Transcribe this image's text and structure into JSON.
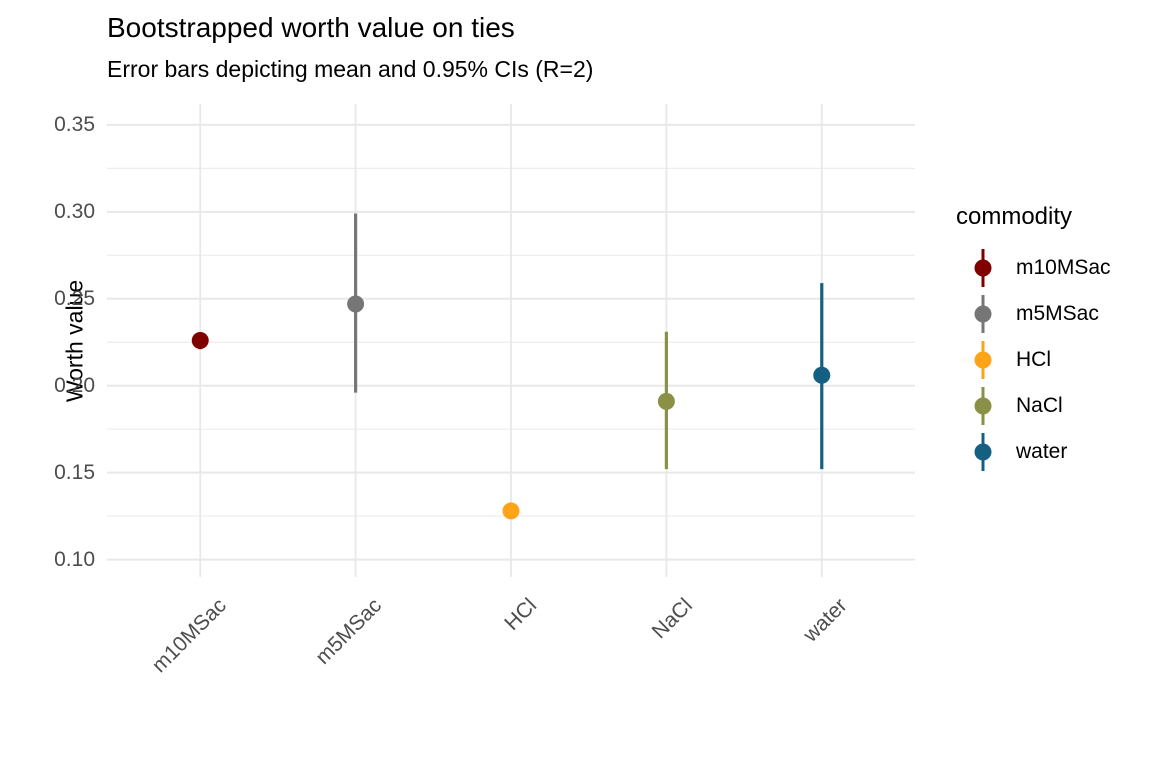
{
  "chart_data": {
    "type": "scatter",
    "subtype": "pointrange-errorbar",
    "title": "Bootstrapped worth value on ties",
    "subtitle": "Error bars depicting mean and 0.95% CIs (R=2)",
    "xlabel": "",
    "ylabel": "Worth value",
    "legend_title": "commodity",
    "legend_position": "right",
    "grid": true,
    "categories": [
      "m10MSac",
      "m5MSac",
      "HCl",
      "NaCl",
      "water"
    ],
    "series": [
      {
        "name": "m10MSac",
        "color": "#800000",
        "mean": 0.226,
        "lower": 0.221,
        "upper": 0.23
      },
      {
        "name": "m5MSac",
        "color": "#767676",
        "mean": 0.247,
        "lower": 0.196,
        "upper": 0.299
      },
      {
        "name": "HCl",
        "color": "#FFA319",
        "mean": 0.128,
        "lower": 0.126,
        "upper": 0.131
      },
      {
        "name": "NaCl",
        "color": "#8A9045",
        "mean": 0.191,
        "lower": 0.152,
        "upper": 0.231
      },
      {
        "name": "water",
        "color": "#155F83",
        "mean": 0.206,
        "lower": 0.152,
        "upper": 0.259
      }
    ],
    "y_axis": {
      "min": 0.09,
      "max": 0.362,
      "ticks": [
        0.35,
        0.3,
        0.25,
        0.2,
        0.15,
        0.1
      ],
      "tick_labels": [
        "0.35",
        "0.30",
        "0.25",
        "0.20",
        "0.15",
        "0.10"
      ],
      "minor_ticks": [
        0.325,
        0.275,
        0.225,
        0.175,
        0.125
      ]
    },
    "colors": {
      "grid_major": "#E8E8E8",
      "grid_minor": "#EDEDED",
      "axis_text": "#4d4d4d",
      "text": "#000000",
      "background": "#ffffff"
    }
  }
}
